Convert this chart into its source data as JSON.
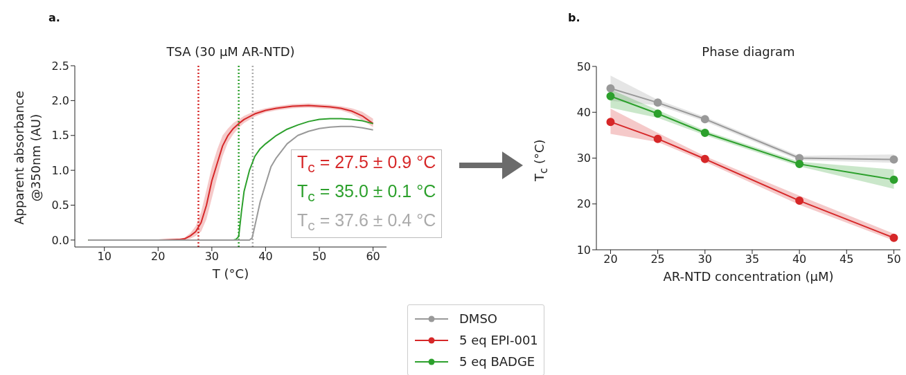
{
  "chart_data": [
    {
      "type": "line",
      "title": "TSA (30 μM AR-NTD)",
      "xlabel": "T (°C)",
      "ylabel": "Apparent absorbance\n@350nm (AU)",
      "xlim": [
        4.5,
        62.5
      ],
      "xticks": [
        10,
        20,
        30,
        40,
        50,
        60
      ],
      "ylim": [
        -0.1,
        2.5
      ],
      "yticks": [
        {
          "value": 0,
          "label": "0.0"
        },
        0.5,
        {
          "value": 1,
          "label": "1.0"
        },
        1.5,
        {
          "value": 2,
          "label": "2.0"
        },
        2.5
      ],
      "marker": "none",
      "line_style": "solid",
      "series": [
        {
          "color": "#d62728",
          "x": [
            7,
            20,
            24,
            25,
            26,
            27,
            28,
            29,
            30,
            31,
            32,
            33,
            34,
            35,
            36,
            38,
            40,
            42,
            45,
            48,
            50,
            52,
            54,
            56,
            58,
            60
          ],
          "values": [
            0,
            0,
            0.01,
            0.02,
            0.06,
            0.12,
            0.25,
            0.5,
            0.85,
            1.1,
            1.35,
            1.5,
            1.6,
            1.67,
            1.73,
            1.81,
            1.86,
            1.89,
            1.92,
            1.93,
            1.92,
            1.91,
            1.89,
            1.85,
            1.78,
            1.67
          ],
          "lower": [
            0,
            0,
            0,
            0,
            0.02,
            0.06,
            0.12,
            0.3,
            0.6,
            0.9,
            1.2,
            1.4,
            1.52,
            1.61,
            1.68,
            1.77,
            1.83,
            1.86,
            1.89,
            1.9,
            1.89,
            1.88,
            1.86,
            1.81,
            1.72,
            1.62
          ],
          "upper": [
            0,
            0,
            0.01,
            0.04,
            0.1,
            0.2,
            0.4,
            0.72,
            1.05,
            1.3,
            1.5,
            1.6,
            1.68,
            1.73,
            1.78,
            1.85,
            1.89,
            1.92,
            1.95,
            1.96,
            1.95,
            1.94,
            1.92,
            1.89,
            1.84,
            1.74
          ]
        },
        {
          "color": "#2ca02c",
          "x": [
            7,
            34,
            34.5,
            35,
            35.5,
            36,
            37,
            38,
            39,
            40,
            42,
            44,
            46,
            48,
            50,
            52,
            54,
            56,
            58,
            60
          ],
          "values": [
            0,
            0,
            0.01,
            0.05,
            0.4,
            0.7,
            1.0,
            1.2,
            1.31,
            1.38,
            1.5,
            1.59,
            1.65,
            1.7,
            1.73,
            1.74,
            1.74,
            1.73,
            1.71,
            1.67
          ]
        },
        {
          "color": "#999999",
          "x": [
            7,
            37,
            37.5,
            38,
            39,
            40,
            41,
            42,
            44,
            46,
            48,
            50,
            52,
            54,
            56,
            58,
            60
          ],
          "values": [
            0,
            0,
            0.03,
            0.2,
            0.55,
            0.8,
            1.05,
            1.18,
            1.38,
            1.5,
            1.56,
            1.6,
            1.62,
            1.63,
            1.63,
            1.61,
            1.58
          ]
        }
      ],
      "ref_lines": [
        {
          "axis": "x",
          "value": 27.5,
          "color": "#d62728",
          "line_style": "dotted"
        },
        {
          "axis": "x",
          "value": 35.0,
          "color": "#2ca02c",
          "line_style": "dotted"
        },
        {
          "axis": "x",
          "value": 37.6,
          "color": "#aaaaaa",
          "line_style": "dotted"
        }
      ],
      "annotations": [
        "a.",
        "T$_{c}$ = 27.5 ± 0.9 °C",
        "T$_{c}$ = 35.0 ± 0.1 °C",
        "T$_{c}$ = 37.6 ± 0.4 °C"
      ]
    },
    {
      "type": "line",
      "title": "Phase diagram",
      "xlabel": "AR-NTD concentration (μM)",
      "ylabel": "T$_{c}$ (°C)",
      "x": [
        20,
        25,
        30,
        40,
        50
      ],
      "xlim": [
        18.5,
        50.7
      ],
      "xticks": [
        20,
        25,
        30,
        35,
        40,
        45,
        50
      ],
      "ylim": [
        10,
        50
      ],
      "yticks": [
        10,
        20,
        30,
        40,
        50
      ],
      "marker": "circle",
      "line_style": "solid",
      "legend": "bottom",
      "series": [
        {
          "name": "DMSO",
          "color": "#999999",
          "values": [
            45.2,
            42.1,
            38.5,
            30.0,
            29.7
          ],
          "lower": [
            42.5,
            41.5,
            38.0,
            29.5,
            29.0
          ],
          "upper": [
            48.0,
            42.7,
            39.0,
            30.5,
            30.8
          ]
        },
        {
          "name": "5 eq EPI-001",
          "color": "#d62728",
          "values": [
            37.9,
            34.2,
            29.8,
            20.7,
            12.6
          ],
          "lower": [
            35.3,
            33.5,
            29.2,
            19.8,
            12.0
          ],
          "upper": [
            40.8,
            35.5,
            30.4,
            21.8,
            13.5
          ]
        },
        {
          "name": "5 eq BADGE",
          "color": "#2ca02c",
          "values": [
            43.5,
            39.7,
            35.5,
            28.7,
            25.3
          ],
          "lower": [
            41.0,
            38.8,
            35.0,
            28.2,
            23.3
          ],
          "upper": [
            45.0,
            40.5,
            36.0,
            29.2,
            27.5
          ]
        }
      ],
      "annotations": [
        "b."
      ]
    }
  ]
}
